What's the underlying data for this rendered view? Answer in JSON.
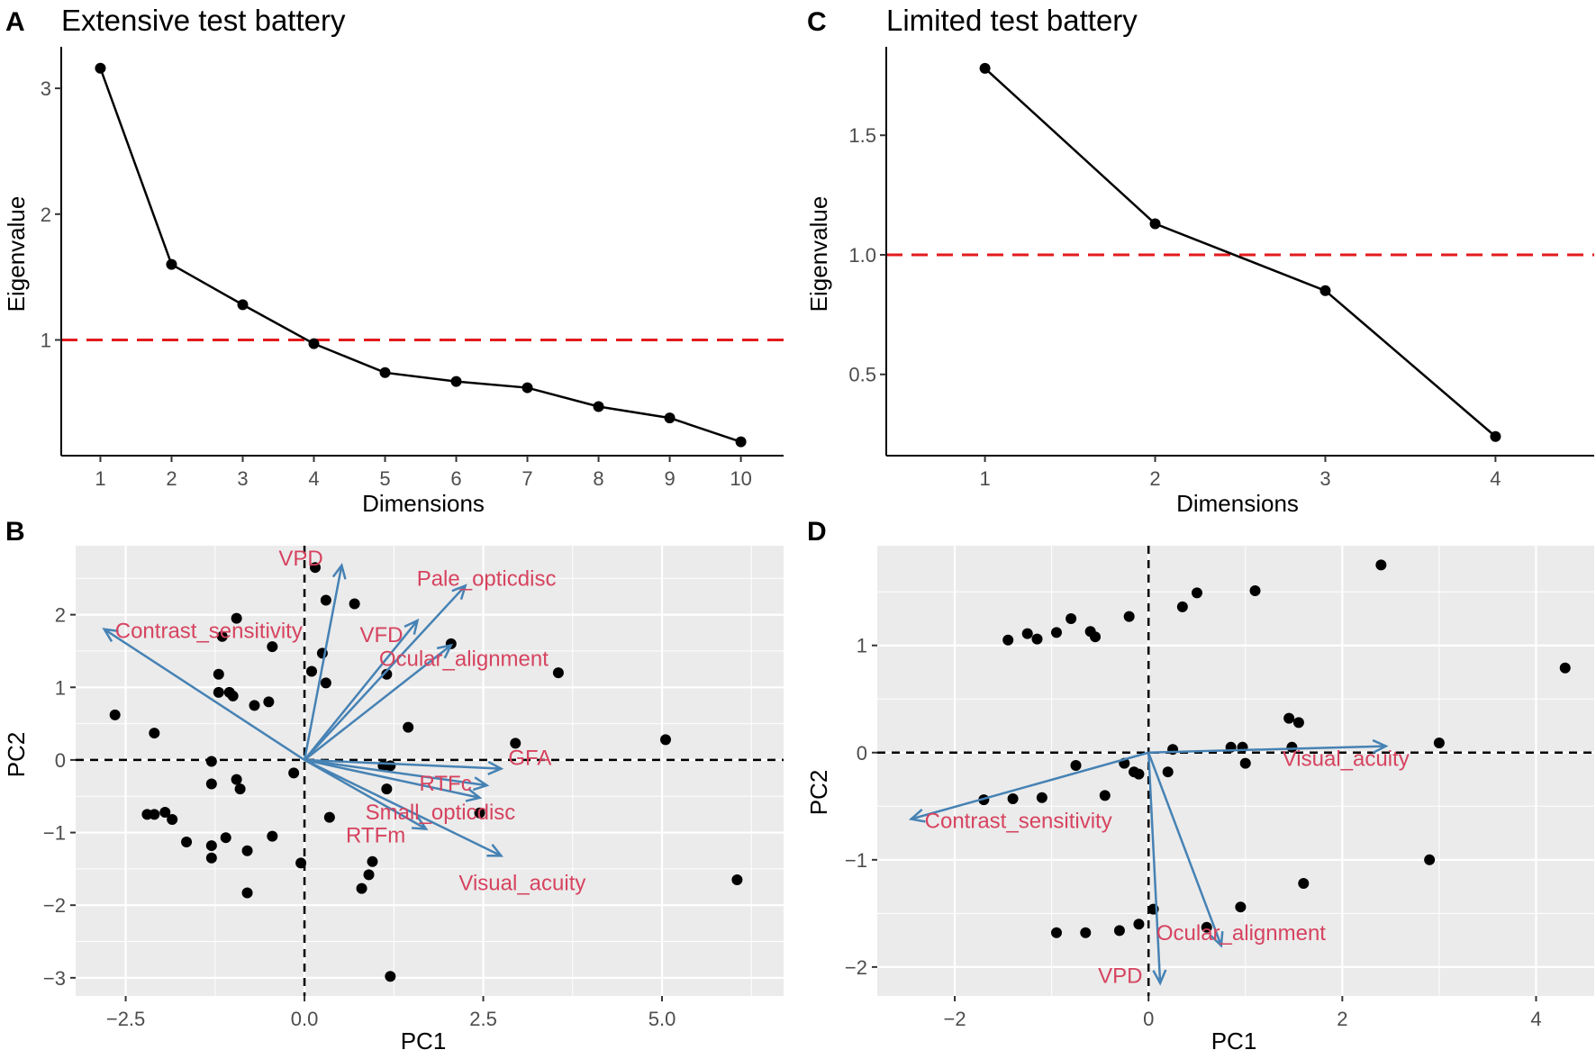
{
  "chart_data": [
    {
      "panel": "A",
      "type": "line",
      "title": "Extensive test battery",
      "xlabel": "Dimensions",
      "ylabel": "Eigenvalue",
      "x": [
        1,
        2,
        3,
        4,
        5,
        6,
        7,
        8,
        9,
        10
      ],
      "values": [
        3.16,
        1.6,
        1.28,
        0.97,
        0.74,
        0.67,
        0.62,
        0.47,
        0.38,
        0.19
      ],
      "xticks": [
        "1",
        "2",
        "3",
        "4",
        "5",
        "6",
        "7",
        "8",
        "9",
        "10"
      ],
      "yticks": [
        1,
        2,
        3
      ],
      "ytick_labels": [
        "1",
        "2",
        "3"
      ],
      "xlim": [
        0.45,
        10.6
      ],
      "ylim": [
        0.08,
        3.33
      ],
      "reference_line": {
        "y": 1,
        "color": "#e31a1c",
        "style": "dashed"
      }
    },
    {
      "panel": "B",
      "type": "scatter",
      "title": "",
      "xlabel": "PC1",
      "ylabel": "PC2",
      "xlim": [
        -3.2,
        6.7
      ],
      "ylim": [
        -3.25,
        2.95
      ],
      "xticks": [
        -2.5,
        0,
        2.5,
        5
      ],
      "xtick_labels": [
        "−2.5",
        "0.0",
        "2.5",
        "5.0"
      ],
      "yticks": [
        -3,
        -2,
        -1,
        0,
        1,
        2
      ],
      "ytick_labels": [
        "−3",
        "−2",
        "−1",
        "0",
        "1",
        "2"
      ],
      "points": [
        [
          -2.65,
          0.62
        ],
        [
          -2.1,
          0.37
        ],
        [
          -2.2,
          -0.75
        ],
        [
          -2.1,
          -0.75
        ],
        [
          -1.95,
          -0.72
        ],
        [
          -1.85,
          -0.82
        ],
        [
          -1.65,
          -1.13
        ],
        [
          -1.3,
          -0.02
        ],
        [
          -1.3,
          -0.33
        ],
        [
          -1.3,
          -1.18
        ],
        [
          -1.3,
          -1.35
        ],
        [
          -1.2,
          1.18
        ],
        [
          -1.2,
          0.93
        ],
        [
          -1.15,
          1.7
        ],
        [
          -1.1,
          -1.07
        ],
        [
          -1.05,
          0.93
        ],
        [
          -1.0,
          0.88
        ],
        [
          -0.95,
          1.95
        ],
        [
          -0.95,
          -0.27
        ],
        [
          -0.9,
          -0.4
        ],
        [
          -0.8,
          -1.25
        ],
        [
          -0.8,
          -1.83
        ],
        [
          -0.7,
          0.75
        ],
        [
          -0.5,
          0.8
        ],
        [
          -0.45,
          1.56
        ],
        [
          -0.45,
          -1.05
        ],
        [
          -0.15,
          -0.18
        ],
        [
          -0.05,
          -1.42
        ],
        [
          0.1,
          1.22
        ],
        [
          0.15,
          2.65
        ],
        [
          0.25,
          1.47
        ],
        [
          0.3,
          1.06
        ],
        [
          0.3,
          2.2
        ],
        [
          0.35,
          -0.79
        ],
        [
          0.7,
          2.15
        ],
        [
          0.8,
          -1.77
        ],
        [
          0.9,
          -1.58
        ],
        [
          0.95,
          -1.4
        ],
        [
          1.1,
          -0.08
        ],
        [
          1.15,
          1.18
        ],
        [
          1.15,
          -0.4
        ],
        [
          1.2,
          -0.08
        ],
        [
          1.2,
          -2.98
        ],
        [
          1.45,
          0.45
        ],
        [
          2.05,
          1.6
        ],
        [
          2.45,
          -0.73
        ],
        [
          2.95,
          0.23
        ],
        [
          3.55,
          1.2
        ],
        [
          5.05,
          0.28
        ],
        [
          6.05,
          -1.65
        ]
      ],
      "arrows": [
        {
          "label": "VPD",
          "x": 0.52,
          "y": 2.68
        },
        {
          "label": "Pale_opticdisc",
          "x": 2.25,
          "y": 2.4
        },
        {
          "label": "VFD",
          "x": 1.58,
          "y": 1.92
        },
        {
          "label": "Contrast_sensitivity",
          "x": -2.8,
          "y": 1.8
        },
        {
          "label": "Ocular_alignment",
          "x": 2.05,
          "y": 1.58
        },
        {
          "label": "GFA",
          "x": 2.75,
          "y": -0.12
        },
        {
          "label": "RTFc",
          "x": 2.55,
          "y": -0.35
        },
        {
          "label": "Small_opticdisc",
          "x": 2.45,
          "y": -0.52
        },
        {
          "label": "RTFm",
          "x": 1.7,
          "y": -0.95
        },
        {
          "label": "Visual_acuity",
          "x": 2.75,
          "y": -1.32
        }
      ]
    },
    {
      "panel": "C",
      "type": "line",
      "title": "Limited test battery",
      "xlabel": "Dimensions",
      "ylabel": "Eigenvalue",
      "x": [
        1,
        2,
        3,
        4
      ],
      "values": [
        1.78,
        1.13,
        0.85,
        0.24
      ],
      "xticks": [
        "1",
        "2",
        "3",
        "4"
      ],
      "yticks": [
        0.5,
        1.0,
        1.5
      ],
      "ytick_labels": [
        "0.5",
        "1.0",
        "1.5"
      ],
      "xlim": [
        0.42,
        4.58
      ],
      "ylim": [
        0.16,
        1.87
      ],
      "reference_line": {
        "y": 1,
        "color": "#e31a1c",
        "style": "dashed"
      }
    },
    {
      "panel": "D",
      "type": "scatter",
      "title": "",
      "xlabel": "PC1",
      "ylabel": "PC2",
      "xlim": [
        -2.8,
        4.6
      ],
      "ylim": [
        -2.27,
        1.93
      ],
      "xticks": [
        -2,
        0,
        2,
        4
      ],
      "xtick_labels": [
        "−2",
        "0",
        "2",
        "4"
      ],
      "yticks": [
        -2,
        -1,
        0,
        1
      ],
      "ytick_labels": [
        "−2",
        "−1",
        "0",
        "1"
      ],
      "points": [
        [
          -1.7,
          -0.44
        ],
        [
          -1.4,
          -0.43
        ],
        [
          -1.1,
          -0.42
        ],
        [
          -0.75,
          -0.12
        ],
        [
          -0.45,
          -0.4
        ],
        [
          -0.25,
          -0.1
        ],
        [
          -0.15,
          -0.18
        ],
        [
          -0.1,
          -0.2
        ],
        [
          0.25,
          0.03
        ],
        [
          0.2,
          -0.18
        ],
        [
          -1.45,
          1.05
        ],
        [
          -1.25,
          1.11
        ],
        [
          -1.15,
          1.06
        ],
        [
          -0.95,
          1.12
        ],
        [
          -0.8,
          1.25
        ],
        [
          -0.6,
          1.13
        ],
        [
          -0.55,
          1.08
        ],
        [
          -0.2,
          1.27
        ],
        [
          0.35,
          1.36
        ],
        [
          0.5,
          1.49
        ],
        [
          1.1,
          1.51
        ],
        [
          0.85,
          0.05
        ],
        [
          0.97,
          0.05
        ],
        [
          1.0,
          -0.1
        ],
        [
          1.45,
          0.32
        ],
        [
          1.48,
          0.05
        ],
        [
          1.55,
          0.28
        ],
        [
          2.4,
          1.75
        ],
        [
          3.0,
          0.09
        ],
        [
          2.9,
          -1.0
        ],
        [
          4.3,
          0.79
        ],
        [
          1.6,
          -1.22
        ],
        [
          0.95,
          -1.44
        ],
        [
          0.6,
          -1.63
        ],
        [
          -0.95,
          -1.68
        ],
        [
          -0.65,
          -1.68
        ],
        [
          -0.3,
          -1.66
        ],
        [
          -0.1,
          -1.6
        ],
        [
          0.05,
          -1.46
        ]
      ],
      "arrows": [
        {
          "label": "Visual_acuity",
          "x": 2.45,
          "y": 0.06
        },
        {
          "label": "Contrast_sensitivity",
          "x": -2.45,
          "y": -0.62
        },
        {
          "label": "Ocular_alignment",
          "x": 0.75,
          "y": -1.8
        },
        {
          "label": "VPD",
          "x": 0.12,
          "y": -2.15
        }
      ]
    }
  ]
}
